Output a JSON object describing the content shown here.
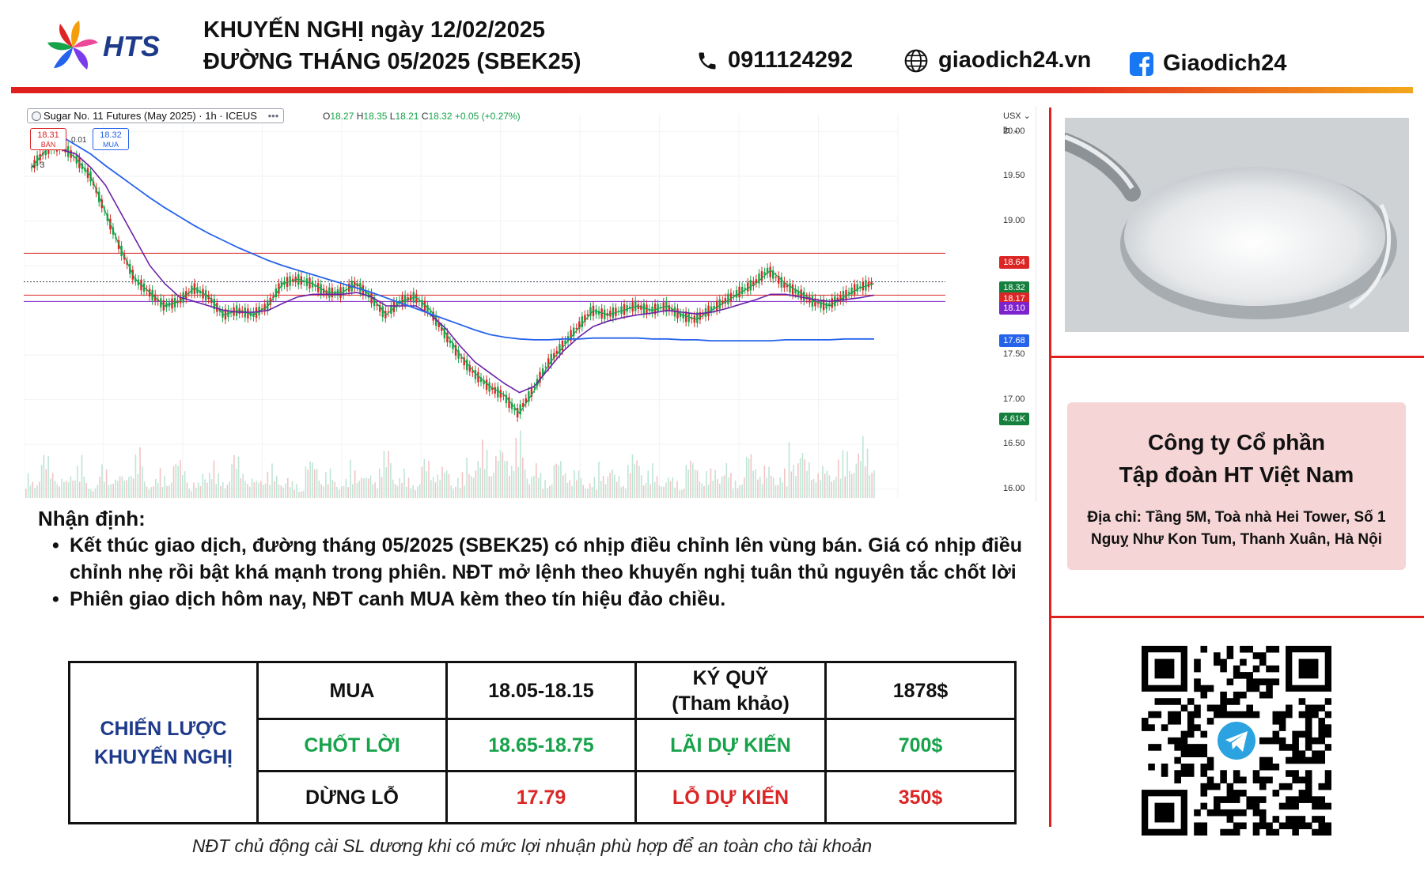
{
  "header": {
    "logo_text": "HTS",
    "title_line1": "KHUYẾN NGHỊ ngày 12/02/2025",
    "title_line2": "ĐƯỜNG THÁNG 05/2025 (SBEK25)",
    "phone": "0911124292",
    "website": "giaodich24.vn",
    "facebook": "Giaodich24"
  },
  "chart": {
    "symbol": "Sugar No. 11 Futures (May 2025) · 1h · ICEUS",
    "ohlc": {
      "o": "18.27",
      "h": "18.35",
      "l": "18.21",
      "c": "18.32",
      "chg": "+0.05 (+0.27%)"
    },
    "sell_price": "18.31",
    "sell_label": "BÁN",
    "buy_price": "18.32",
    "buy_label": "MUA",
    "spread": "0.01",
    "indicator_count": "3",
    "currency": "USX",
    "unit": "lb"
  },
  "chart_data": {
    "type": "line",
    "title": "Sugar No. 11 Futures (May 2025) · 1h · ICEUS",
    "xlabel": "",
    "ylabel": "",
    "ylim": [
      15.9,
      20.2
    ],
    "yticks": [
      20.0,
      19.5,
      19.0,
      18.5,
      17.5,
      17.0,
      16.5,
      16.0
    ],
    "horizontal_lines": [
      18.64,
      18.32,
      18.17,
      18.1
    ],
    "price_tags": [
      {
        "value": "18.64",
        "color": "#dc2626"
      },
      {
        "value": "18.32",
        "color": "#15803d"
      },
      {
        "value": "18.17",
        "color": "#dc2626"
      },
      {
        "value": "18.10",
        "color": "#7e22ce"
      },
      {
        "value": "17.68",
        "color": "#2563eb"
      },
      {
        "value": "4.61K",
        "color": "#15803d"
      }
    ],
    "series": [
      {
        "values": [
          19.6,
          19.8,
          19.85,
          19.7,
          19.5,
          19.1,
          18.7,
          18.35,
          18.2,
          18.05,
          18.1,
          18.25,
          18.15,
          17.95,
          18.0,
          17.95,
          18.05,
          18.3,
          18.35,
          18.3,
          18.2,
          18.2,
          18.3,
          18.15,
          17.95,
          18.1,
          18.15,
          18.0,
          17.75,
          17.5,
          17.3,
          17.15,
          17.05,
          16.85,
          17.1,
          17.4,
          17.6,
          17.8,
          18.0,
          17.95,
          18.0,
          18.05,
          18.0,
          18.05,
          17.95,
          17.9,
          18.0,
          18.1,
          18.2,
          18.3,
          18.45,
          18.3,
          18.2,
          18.1,
          18.05,
          18.15,
          18.25,
          18.3
        ]
      },
      {
        "values": [
          19.8,
          19.8,
          19.8,
          19.75,
          19.6,
          19.4,
          19.1,
          18.8,
          18.5,
          18.3,
          18.15,
          18.1,
          18.05,
          18.0,
          17.98,
          17.98,
          18.0,
          18.08,
          18.15,
          18.18,
          18.18,
          18.18,
          18.2,
          18.15,
          18.05,
          18.05,
          18.05,
          17.95,
          17.8,
          17.6,
          17.42,
          17.3,
          17.18,
          17.08,
          17.15,
          17.35,
          17.55,
          17.7,
          17.82,
          17.88,
          17.92,
          17.95,
          17.97,
          18.0,
          17.98,
          17.96,
          17.98,
          18.02,
          18.07,
          18.12,
          18.18,
          18.18,
          18.15,
          18.12,
          18.1,
          18.12,
          18.14,
          18.17
        ]
      },
      {
        "values": [
          20.0,
          20.0,
          19.95,
          19.85,
          19.75,
          19.62,
          19.5,
          19.38,
          19.26,
          19.15,
          19.05,
          18.95,
          18.86,
          18.78,
          18.7,
          18.63,
          18.56,
          18.5,
          18.45,
          18.4,
          18.35,
          18.3,
          18.25,
          18.2,
          18.14,
          18.08,
          18.02,
          17.96,
          17.9,
          17.84,
          17.78,
          17.73,
          17.7,
          17.68,
          17.67,
          17.67,
          17.68,
          17.68,
          17.69,
          17.69,
          17.69,
          17.69,
          17.68,
          17.68,
          17.67,
          17.67,
          17.66,
          17.66,
          17.66,
          17.66,
          17.66,
          17.67,
          17.67,
          17.67,
          17.67,
          17.68,
          17.68,
          17.68
        ]
      }
    ],
    "volume": [
      0.3,
      0.55,
      0.25,
      0.5,
      0.2,
      0.4,
      0.3,
      0.6,
      0.25,
      0.35,
      0.5,
      0.2,
      0.45,
      0.3,
      0.55,
      0.25,
      0.4,
      0.3,
      0.2,
      0.5,
      0.35,
      0.25,
      0.45,
      0.3,
      0.6,
      0.35,
      0.25,
      0.5,
      0.4,
      0.3,
      0.55,
      0.7,
      0.65,
      0.8,
      0.45,
      0.3,
      0.5,
      0.35,
      0.25,
      0.45,
      0.3,
      0.55,
      0.4,
      0.3,
      0.25,
      0.5,
      0.35,
      0.45,
      0.3,
      0.6,
      0.4,
      0.35,
      0.7,
      0.5,
      0.4,
      0.55,
      0.65,
      0.75
    ],
    "grid": true,
    "legend": "none"
  },
  "right": {
    "company_line1": "Công ty Cổ phần",
    "company_line2": "Tập đoàn HT Việt Nam",
    "address_line1": "Địa chỉ: Tầng 5M, Toà nhà Hei Tower, Số 1",
    "address_line2": "Nguỵ Như Kon Tum, Thanh Xuân, Hà Nội"
  },
  "assessment": {
    "title": "Nhận định:",
    "bullet1": "Kết thúc giao dịch, đường tháng 05/2025 (SBEK25) có nhịp điều chỉnh lên vùng bán. Giá có nhịp điều chỉnh nhẹ rồi bật khá mạnh trong phiên. NĐT mở lệnh theo khuyến nghị tuân thủ nguyên tắc chốt lời",
    "bullet2": "Phiên giao dịch hôm nay, NĐT canh MUA kèm theo tín hiệu đảo chiều."
  },
  "strategy": {
    "label_line1": "CHIẾN LƯỢC",
    "label_line2": "KHUYẾN NGHỊ",
    "action": "MUA",
    "entry_range": "18.05-18.15",
    "margin_line1": "KÝ QUỸ",
    "margin_line2": "(Tham khảo)",
    "margin_value": "1878$",
    "take_profit_label": "CHỐT LỜI",
    "take_profit_range": "18.65-18.75",
    "expected_profit_label": "LÃI DỰ KIẾN",
    "expected_profit": "700$",
    "stop_loss_label": "DỪNG LỖ",
    "stop_loss": "17.79",
    "expected_loss_label": "LỖ DỰ KIẾN",
    "expected_loss": "350$"
  },
  "footer_note": "NĐT chủ động cài SL dương khi có mức lợi nhuận phù hợp để an toàn cho tài khoản"
}
